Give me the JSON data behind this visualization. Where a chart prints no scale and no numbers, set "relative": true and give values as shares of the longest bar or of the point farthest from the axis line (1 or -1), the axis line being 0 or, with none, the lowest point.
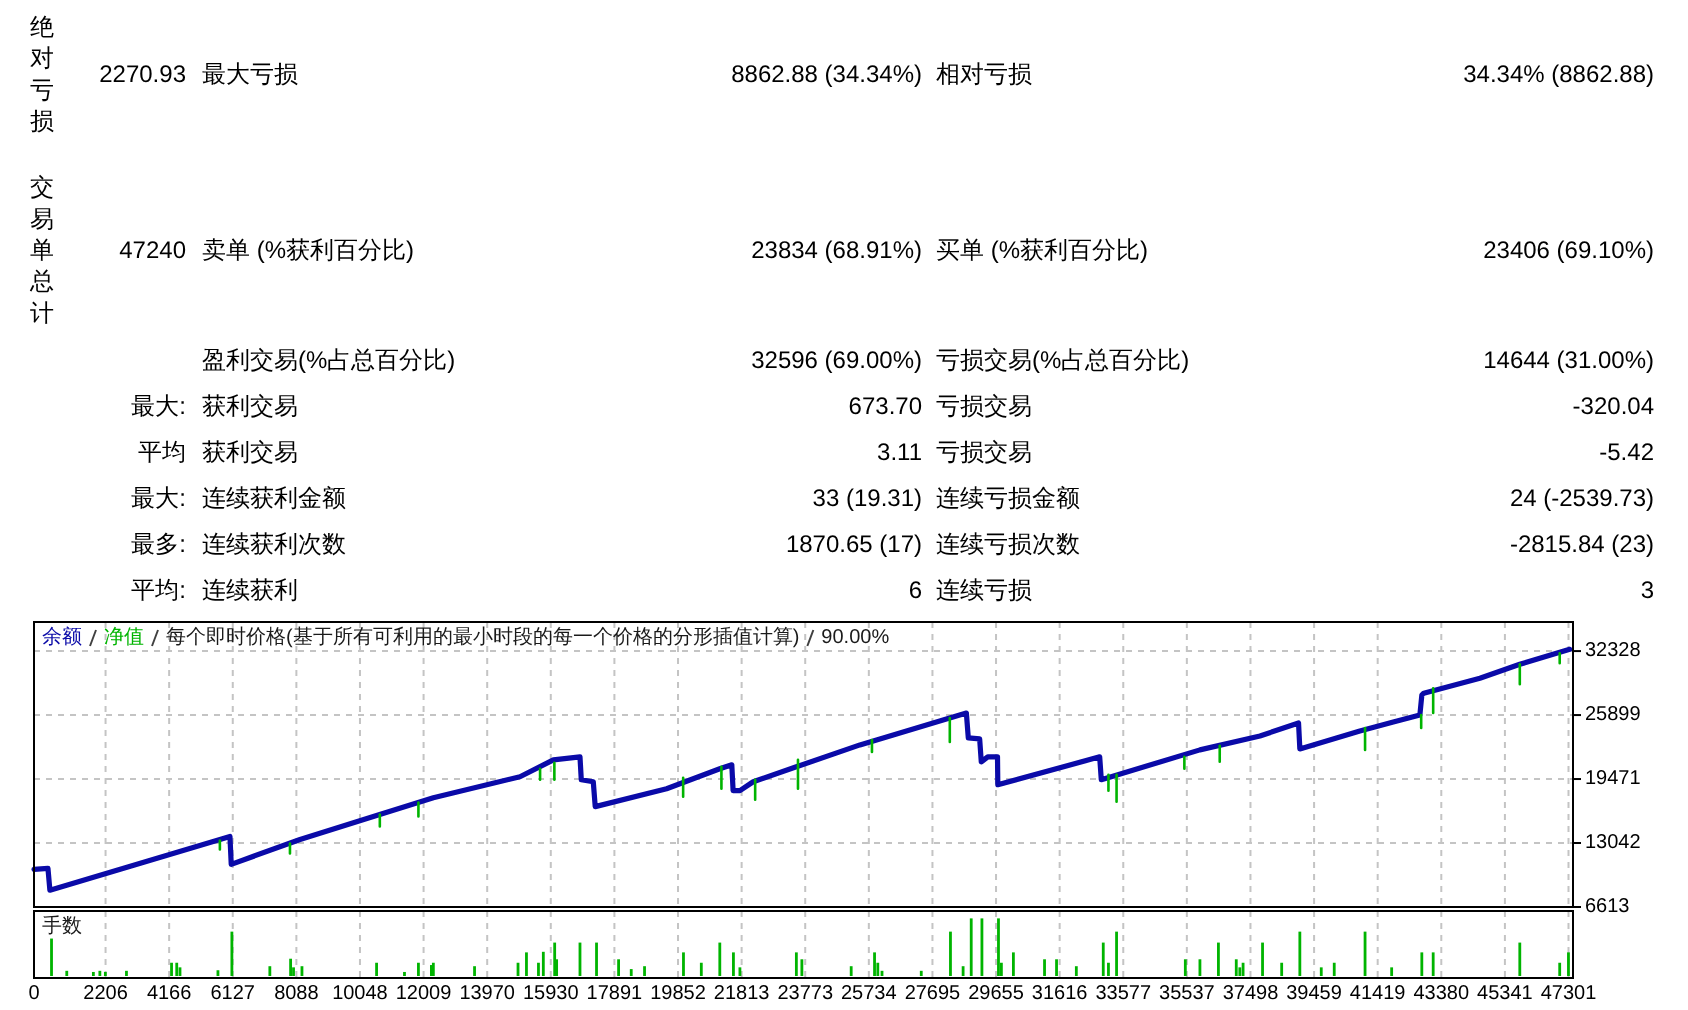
{
  "chart_data": [
    {
      "type": "other",
      "annotations": [
        "绝对亏损",
        "2270.93",
        "最大亏损",
        "8862.88 (34.34%)",
        "相对亏损",
        "34.34% (8862.88)",
        "交易单总计",
        "47240",
        "卖单 (%获利百分比)",
        "23834 (68.91%)",
        "买单 (%获利百分比)",
        "23406 (69.10%)",
        "盈利交易(%占总百分比)",
        "32596 (69.00%)",
        "亏损交易(%占总百分比)",
        "14644 (31.00%)",
        "最大:",
        "获利交易",
        "673.70",
        "亏损交易",
        "-320.04",
        "平均",
        "获利交易",
        "3.11",
        "亏损交易",
        "-5.42",
        "最大:",
        "连续获利金额",
        "33 (19.31)",
        "连续亏损金额",
        "24 (-2539.73)",
        "最多:",
        "连续获利次数",
        "1870.65 (17)",
        "连续亏损次数",
        "-2815.84 (23)",
        "平均:",
        "连续获利",
        "6",
        "连续亏损",
        "3"
      ]
    },
    {
      "type": "line",
      "title": "每个即时价格(基于所有可利用的最小时段的每一个价格的分形插值计算)",
      "subtitle": "90.00%",
      "legend": "top left",
      "grid": true,
      "tick_labels": "y",
      "xlim": [
        0,
        47440
      ],
      "ylim": [
        6613,
        35250
      ],
      "xticks": [
        0,
        2206,
        4166,
        6127,
        8088,
        10048,
        12009,
        13970,
        15930,
        17891,
        19852,
        21813,
        23773,
        25734,
        27695,
        29655,
        31616,
        33577,
        35537,
        37498,
        39459,
        41419,
        43380,
        45341,
        47301
      ],
      "yticks": [
        6613,
        13042,
        19471,
        25899,
        32328
      ],
      "series": [
        {
          "name": "余额",
          "color": "#0a0aa8",
          "x": [
            0,
            430,
            490,
            6040,
            6080,
            8200,
            10460,
            12310,
            14980,
            16010,
            16830,
            16870,
            17240,
            17300,
            19500,
            21140,
            21510,
            21550,
            21760,
            22170,
            23500,
            25460,
            28740,
            28800,
            29150,
            29200,
            29400,
            29700,
            29710,
            32850,
            32900,
            35940,
            37790,
            38980,
            39020,
            40870,
            41900,
            42720,
            42780,
            42840,
            44570,
            45800,
            47340
          ],
          "values": [
            10400,
            10500,
            8300,
            13700,
            10900,
            13400,
            15700,
            17600,
            19700,
            21400,
            21700,
            19400,
            19200,
            16700,
            18500,
            20500,
            20900,
            18300,
            18300,
            19200,
            20700,
            22900,
            26100,
            23600,
            23500,
            21200,
            21700,
            21700,
            18900,
            21700,
            19400,
            22400,
            23800,
            25100,
            22500,
            24300,
            25200,
            25900,
            27900,
            28100,
            29600,
            31000,
            32500
          ]
        },
        {
          "name": "净值",
          "color": "#00b400",
          "x": [
            5730,
            5730,
            null,
            7890,
            7890,
            null,
            10660,
            10660,
            null,
            11850,
            11850,
            null,
            15600,
            15600,
            null,
            16040,
            16040,
            null,
            20010,
            20010,
            null,
            21190,
            21190,
            null,
            22230,
            22230,
            null,
            23550,
            23550,
            null,
            25830,
            25830,
            null,
            28230,
            28230,
            null,
            33120,
            33120,
            null,
            33370,
            33370,
            null,
            35460,
            35460,
            null,
            36550,
            36550,
            null,
            41030,
            41030,
            null,
            42760,
            42760,
            null,
            43130,
            43130,
            null,
            45800,
            45800,
            null,
            47030,
            47030
          ],
          "values": [
            13300,
            12400,
            null,
            13000,
            12000,
            null,
            15900,
            14700,
            null,
            17100,
            15700,
            null,
            20500,
            19400,
            null,
            21100,
            19400,
            null,
            19600,
            17700,
            null,
            20700,
            18500,
            null,
            19400,
            17400,
            null,
            21400,
            18500,
            null,
            23400,
            22200,
            null,
            25600,
            23200,
            null,
            19900,
            18300,
            null,
            19900,
            17200,
            null,
            21700,
            20500,
            null,
            22800,
            21200,
            null,
            24600,
            22400,
            null,
            25900,
            24600,
            null,
            28600,
            26100,
            null,
            31000,
            29000,
            null,
            32100,
            31100
          ]
        }
      ]
    },
    {
      "type": "bar",
      "title": "手数",
      "relative": true,
      "color": "#00b400",
      "grid": "x",
      "tick_labels": "x",
      "xlim": [
        0,
        47440
      ],
      "xticks": [
        0,
        2206,
        4166,
        6127,
        8088,
        10048,
        12009,
        13970,
        15930,
        17891,
        19852,
        21813,
        23773,
        25734,
        27695,
        29655,
        31616,
        33577,
        35537,
        37498,
        39459,
        41419,
        43380,
        45341,
        47301
      ],
      "x": [
        540,
        1010,
        1830,
        2030,
        2200,
        2850,
        4240,
        4400,
        4500,
        5670,
        6100,
        7270,
        7910,
        8000,
        8260,
        10560,
        11420,
        11850,
        12250,
        12310,
        13580,
        14920,
        15180,
        15550,
        15700,
        16050,
        16110,
        16830,
        17340,
        18020,
        18410,
        18820,
        20020,
        20570,
        21140,
        21560,
        21760,
        23500,
        23670,
        25190,
        25910,
        26010,
        26140,
        27350,
        28250,
        28640,
        28890,
        29220,
        29730,
        29820,
        30190,
        31150,
        31520,
        32130,
        32960,
        33120,
        33370,
        35490,
        35940,
        36510,
        37060,
        37170,
        37270,
        37870,
        38460,
        39020,
        39680,
        40080,
        41030,
        41850,
        42780,
        43130,
        45800,
        47030,
        47300
      ],
      "values": [
        0.65,
        0.09,
        0.07,
        0.09,
        0.07,
        0.09,
        0.23,
        0.23,
        0.15,
        0.1,
        0.77,
        0.17,
        0.3,
        0.15,
        0.17,
        0.23,
        0.07,
        0.23,
        0.19,
        0.23,
        0.17,
        0.23,
        0.41,
        0.23,
        0.42,
        0.58,
        0.29,
        0.58,
        0.58,
        0.29,
        0.12,
        0.17,
        0.41,
        0.23,
        0.58,
        0.41,
        0.15,
        0.41,
        0.29,
        0.17,
        0.41,
        0.23,
        0.09,
        0.09,
        0.77,
        0.17,
        1,
        1,
        1,
        0.23,
        0.41,
        0.29,
        0.29,
        0.17,
        0.58,
        0.23,
        0.77,
        0.29,
        0.29,
        0.58,
        0.29,
        0.15,
        0.23,
        0.58,
        0.23,
        0.77,
        0.15,
        0.23,
        0.77,
        0.15,
        0.41,
        0.41,
        0.58,
        0.23,
        0.41
      ]
    }
  ]
}
